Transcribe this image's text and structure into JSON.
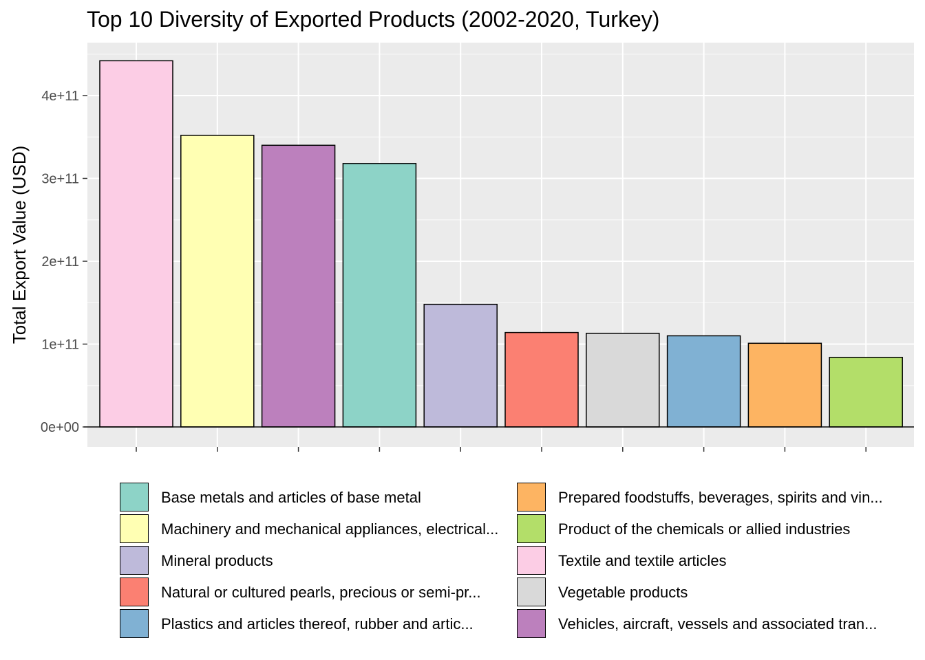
{
  "chart_data": {
    "type": "bar",
    "title": "Top 10 Diversity of Exported Products (2002-2020, Turkey)",
    "xlabel": "",
    "ylabel": "Total Export Value (USD)",
    "ylim": [
      0,
      450000000000
    ],
    "y_ticks": [
      {
        "value": 0,
        "label": "0e+00"
      },
      {
        "value": 100000000000,
        "label": "1e+11"
      },
      {
        "value": 200000000000,
        "label": "2e+11"
      },
      {
        "value": 300000000000,
        "label": "3e+11"
      },
      {
        "value": 400000000000,
        "label": "4e+11"
      }
    ],
    "grid": true,
    "legend_position": "bottom",
    "bars": [
      {
        "category": "Textile and textile articles",
        "value": 442000000000,
        "color": "#FCCDE5"
      },
      {
        "category": "Machinery and mechanical appliances, electrical...",
        "value": 352000000000,
        "color": "#FFFFB3"
      },
      {
        "category": "Vehicles, aircraft, vessels and associated tran...",
        "value": 340000000000,
        "color": "#BC80BD"
      },
      {
        "category": "Base metals and articles of base metal",
        "value": 318000000000,
        "color": "#8DD3C7"
      },
      {
        "category": "Mineral products",
        "value": 148000000000,
        "color": "#BEBADA"
      },
      {
        "category": "Natural or cultured pearls, precious or semi-pr...",
        "value": 114000000000,
        "color": "#FB8072"
      },
      {
        "category": "Vegetable products",
        "value": 113000000000,
        "color": "#D9D9D9"
      },
      {
        "category": "Plastics and articles thereof, rubber and artic...",
        "value": 110000000000,
        "color": "#80B1D3"
      },
      {
        "category": "Prepared foodstuffs, beverages, spirits and vin...",
        "value": 101000000000,
        "color": "#FDB462"
      },
      {
        "category": "Product of the chemicals or allied industries",
        "value": 84000000000,
        "color": "#B3DE69"
      }
    ],
    "legend": [
      {
        "label": "Base metals and articles of base metal",
        "color": "#8DD3C7"
      },
      {
        "label": "Machinery and mechanical appliances, electrical...",
        "color": "#FFFFB3"
      },
      {
        "label": "Mineral products",
        "color": "#BEBADA"
      },
      {
        "label": "Natural or cultured pearls, precious or semi-pr...",
        "color": "#FB8072"
      },
      {
        "label": "Plastics and articles thereof, rubber and artic...",
        "color": "#80B1D3"
      },
      {
        "label": "Prepared foodstuffs, beverages, spirits and vin...",
        "color": "#FDB462"
      },
      {
        "label": "Product of the chemicals or allied industries",
        "color": "#B3DE69"
      },
      {
        "label": "Textile and textile articles",
        "color": "#FCCDE5"
      },
      {
        "label": "Vegetable products",
        "color": "#D9D9D9"
      },
      {
        "label": "Vehicles, aircraft, vessels and associated tran...",
        "color": "#BC80BD"
      }
    ]
  }
}
